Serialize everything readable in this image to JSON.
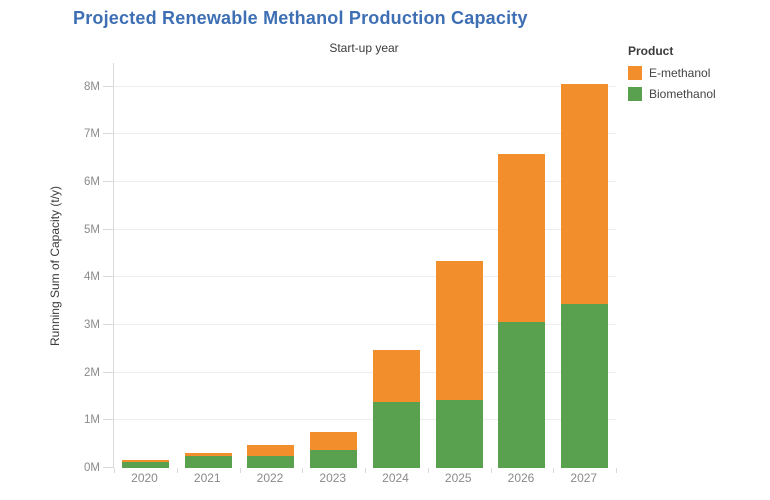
{
  "title": "Projected Renewable Methanol Production Capacity",
  "colors": {
    "title": "#3e6fb4",
    "e_methanol": "#f28e2b",
    "biomethanol": "#59a14f",
    "gridline": "#ededed",
    "axis_line": "#d9d9d9",
    "tick_label": "#8b8b8b",
    "axis_title_text": "#3b3b3b",
    "legend_text": "#444444",
    "background": "#ffffff"
  },
  "legend": {
    "title": "Product",
    "items": [
      {
        "label": "E-methanol",
        "color": "#f28e2b"
      },
      {
        "label": "Biomethanol",
        "color": "#59a14f"
      }
    ]
  },
  "chart_data": {
    "type": "bar",
    "stacked": true,
    "title": "Projected Renewable Methanol Production Capacity",
    "xlabel": "Start-up year",
    "ylabel": "Running Sum of Capacity (t/y)",
    "categories": [
      "2020",
      "2021",
      "2022",
      "2023",
      "2024",
      "2025",
      "2026",
      "2027"
    ],
    "series": [
      {
        "name": "Biomethanol",
        "color": "#59a14f",
        "values": [
          0.13,
          0.25,
          0.25,
          0.38,
          1.38,
          1.43,
          3.06,
          3.44
        ]
      },
      {
        "name": "E-methanol",
        "color": "#f28e2b",
        "values": [
          0.04,
          0.07,
          0.24,
          0.37,
          1.1,
          2.92,
          3.53,
          4.62
        ]
      }
    ],
    "totals": [
      0.17,
      0.32,
      0.49,
      0.75,
      2.48,
      4.35,
      6.59,
      8.06
    ],
    "ylim": [
      0,
      8.5
    ],
    "ytick_values": [
      0,
      1,
      2,
      3,
      4,
      5,
      6,
      7,
      8
    ],
    "ytick_labels": [
      "0M",
      "1M",
      "2M",
      "3M",
      "4M",
      "5M",
      "6M",
      "7M",
      "8M"
    ],
    "grid": true,
    "legend_position": "right",
    "units": "t/y"
  }
}
